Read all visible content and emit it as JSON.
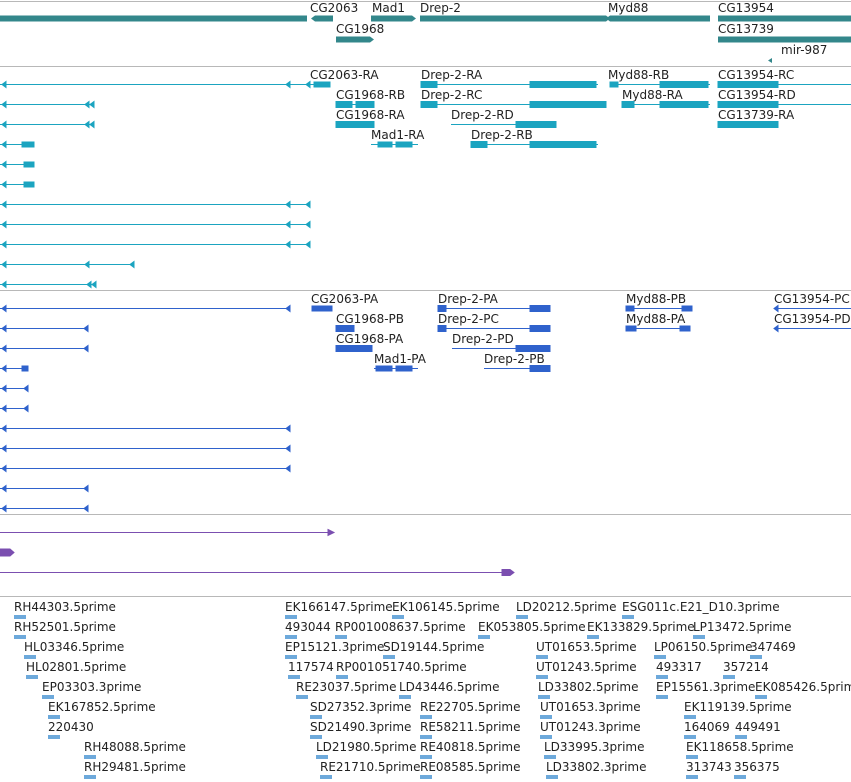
{
  "colors": {
    "gene": "#33878b",
    "transcript_cyan": "#1ba4c0",
    "transcript_blue": "#2f62cc",
    "purple": "#7b4fb0",
    "est": "#6da9db",
    "divider": "#b8b8b8"
  },
  "icons": [
    "forward-arrow-icon",
    "reverse-arrow-icon"
  ],
  "gene_labels": [
    "CG2063",
    "Mad1",
    "Drep-2",
    "Myd88",
    "CG13954",
    "CG1968",
    "CG13739",
    "mir-987"
  ],
  "transcripts_cyan": [
    "CG2063-RA",
    "Drep-2-RA",
    "Myd88-RB",
    "CG13954-RC",
    "CG1968-RB",
    "Drep-2-RC",
    "Myd88-RA",
    "CG13954-RD",
    "CG1968-RA",
    "Drep-2-RD",
    "CG13739-RA",
    "Mad1-RA",
    "Drep-2-RB"
  ],
  "transcripts_blue": [
    "CG2063-PA",
    "Drep-2-PA",
    "Myd88-PB",
    "CG13954-PC",
    "CG1968-PB",
    "Drep-2-PC",
    "Myd88-PA",
    "CG13954-PD",
    "CG1968-PA",
    "Drep-2-PD",
    "Mad1-PA",
    "Drep-2-PB"
  ],
  "est_labels": [
    "RH44303.5prime",
    "EK166147.5prime",
    "EK106145.5prime",
    "LD20212.5prime",
    "ESG011c.E21_D10.3prime",
    "RH52501.5prime",
    "493044",
    "RP001008637.5prime",
    "EK053805.5prime",
    "EK133829.5prime",
    "LP13472.5prime",
    "HL03346.5prime",
    "EP15121.3prime",
    "SD19144.5prime",
    "UT01653.5prime",
    "LP06150.5prime",
    "347469",
    "HL02801.5prime",
    "117574",
    "RP001051740.5prime",
    "UT01243.5prime",
    "493317",
    "357214",
    "EP03303.3prime",
    "RE23037.5prime",
    "LD43446.5prime",
    "LD33802.5prime",
    "EP15561.3prime",
    "EK085426.5prime",
    "EK167852.5prime",
    "SD27352.3prime",
    "RE22705.5prime",
    "UT01653.3prime",
    "EK119139.5prime",
    "220430",
    "SD21490.3prime",
    "RE58211.5prime",
    "UT01243.3prime",
    "164069",
    "449491",
    "RH48088.5prime",
    "LD21980.5prime",
    "RE40818.5prime",
    "LD33995.3prime",
    "EK118658.5prime",
    "RH29481.5prime",
    "RE21710.5prime",
    "RE08585.5prime",
    "LD33802.3prime",
    "313743",
    "356375"
  ]
}
